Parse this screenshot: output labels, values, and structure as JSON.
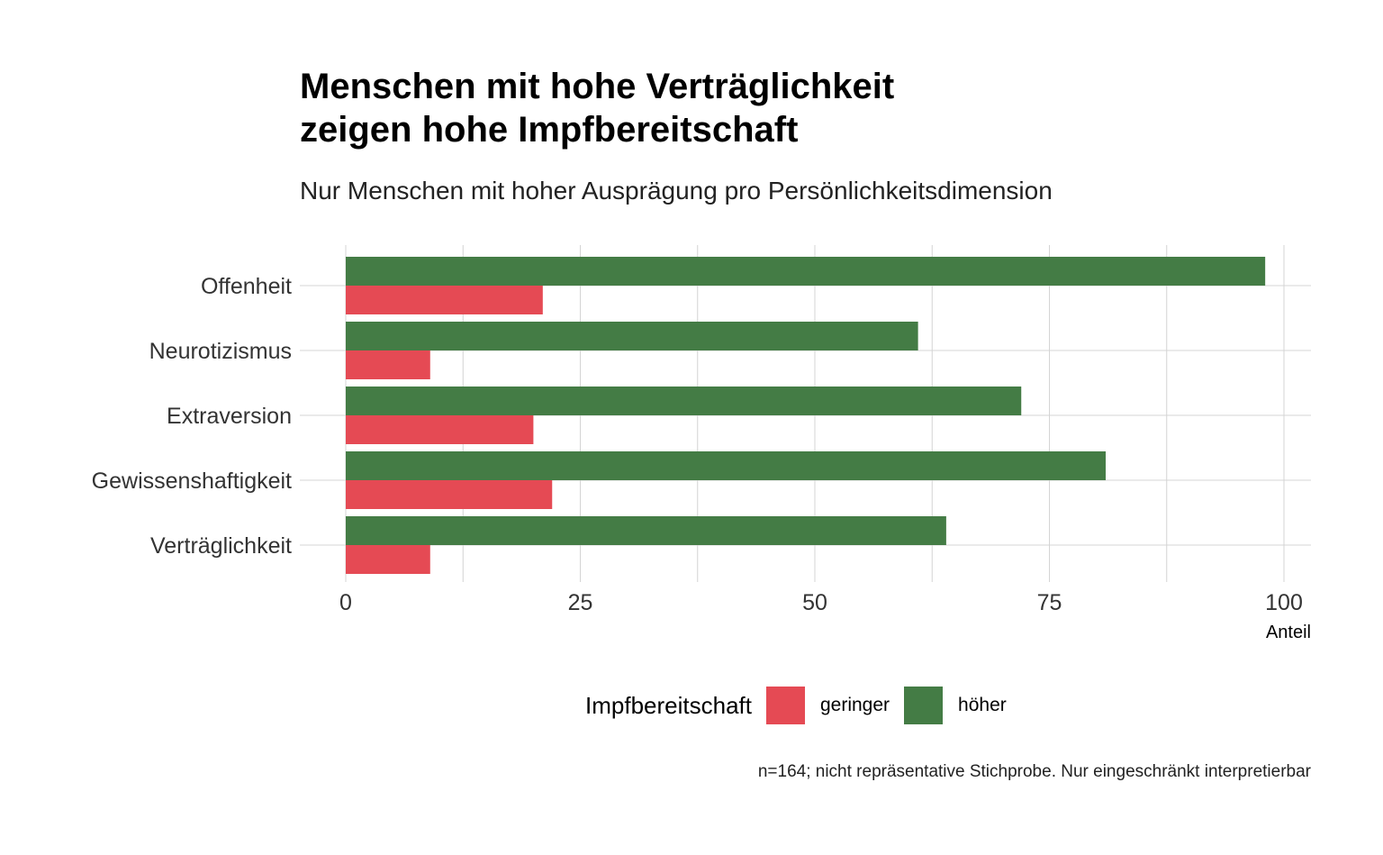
{
  "title_lines": [
    "Menschen mit hohe Verträglichkeit",
    "zeigen hohe Impfbereitschaft"
  ],
  "subtitle": "Nur Menschen mit hoher Ausprägung pro Persönlichkeitsdimension",
  "caption": "n=164; nicht repräsentative Stichprobe. Nur eingeschränkt interpretierbar",
  "legend": {
    "title": "Impfbereitschaft",
    "items": [
      {
        "label": "geringer",
        "color": "#e54a54"
      },
      {
        "label": "höher",
        "color": "#447c45"
      }
    ]
  },
  "chart_data": {
    "type": "bar",
    "orientation": "horizontal",
    "categories": [
      "Offenheit",
      "Neurotizismus",
      "Extraversion",
      "Gewissenshaftigkeit",
      "Verträglichkeit"
    ],
    "series": [
      {
        "name": "geringer",
        "color": "#e54a54",
        "values": [
          21,
          9,
          20,
          22,
          9
        ]
      },
      {
        "name": "höher",
        "color": "#447c45",
        "values": [
          98,
          61,
          72,
          81,
          64
        ]
      }
    ],
    "xlabel": "Anteil",
    "ylabel": "",
    "xlim": [
      0,
      100
    ],
    "xticks": [
      0,
      25,
      50,
      75,
      100
    ],
    "grid": true,
    "legend_position": "bottom"
  }
}
